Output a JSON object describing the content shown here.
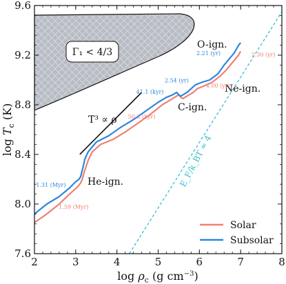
{
  "chart_data": {
    "type": "line",
    "xlabel": "log ρ_c (g cm⁻³)",
    "ylabel": "log T_c (K)",
    "xlim": [
      2,
      8
    ],
    "ylim": [
      7.6,
      9.6
    ],
    "xticks": [
      "2",
      "3",
      "4",
      "5",
      "6",
      "7",
      "8"
    ],
    "yticks": [
      "7.6",
      "8.0",
      "8.4",
      "8.8",
      "9.2",
      "9.6"
    ],
    "legend": {
      "placement": "bottom-right",
      "entries": [
        "Solar",
        "Subsolar"
      ]
    },
    "colors": {
      "solar": "#f07f72",
      "subsolar": "#2a86e0",
      "degeneracy": "#35c0d0",
      "forbidden": "#b8bcc4"
    },
    "series": [
      {
        "name": "Solar",
        "x": [
          2.0,
          2.3,
          2.6,
          2.85,
          3.05,
          3.12,
          3.16,
          3.2,
          3.25,
          3.3,
          3.4,
          3.6,
          3.9,
          4.2,
          4.5,
          4.8,
          5.1,
          5.3,
          5.4,
          5.5,
          5.55,
          5.6,
          5.75,
          5.85,
          5.95,
          6.1,
          6.3,
          6.5,
          6.65,
          6.8,
          6.9,
          6.95,
          6.98,
          7.0
        ],
        "y": [
          7.85,
          7.92,
          8.0,
          8.08,
          8.14,
          8.17,
          8.2,
          8.25,
          8.3,
          8.35,
          8.42,
          8.48,
          8.52,
          8.58,
          8.65,
          8.72,
          8.8,
          8.84,
          8.86,
          8.88,
          8.86,
          8.85,
          8.88,
          8.9,
          8.93,
          8.95,
          8.98,
          9.03,
          9.08,
          9.14,
          9.18,
          9.2,
          9.22,
          9.23
        ]
      },
      {
        "name": "Subsolar",
        "x": [
          2.0,
          2.3,
          2.6,
          2.85,
          3.0,
          3.08,
          3.12,
          3.15,
          3.18,
          3.22,
          3.3,
          3.5,
          3.8,
          4.1,
          4.4,
          4.7,
          5.0,
          5.2,
          5.35,
          5.45,
          5.5,
          5.55,
          5.7,
          5.8,
          5.9,
          6.05,
          6.25,
          6.45,
          6.6,
          6.75,
          6.85,
          6.9,
          6.95,
          7.0
        ],
        "y": [
          7.92,
          8.0,
          8.06,
          8.13,
          8.18,
          8.2,
          8.22,
          8.26,
          8.3,
          8.36,
          8.42,
          8.5,
          8.55,
          8.62,
          8.68,
          8.75,
          8.82,
          8.86,
          8.88,
          8.9,
          8.88,
          8.87,
          8.9,
          8.93,
          8.96,
          8.98,
          9.0,
          9.05,
          9.12,
          9.18,
          9.22,
          9.25,
          9.28,
          9.3
        ]
      }
    ],
    "degeneracy_line": {
      "x": [
        4.3,
        8.0
      ],
      "y": [
        7.6,
        9.55
      ],
      "label": "E_F/k_BT ≈ 4"
    },
    "slope_line": {
      "x": [
        3.1,
        4.6
      ],
      "y": [
        8.4,
        8.9
      ],
      "label": "T³ ∝ ρ"
    },
    "forbidden_region": {
      "label": "Γ₁ < 4/3"
    },
    "annotations": {
      "he_ign": "He-ign.",
      "c_ign": "C-ign.",
      "ne_ign": "Ne-ign.",
      "o_ign": "O-ign."
    },
    "times_subsolar": [
      {
        "label": "1.31 (Myr)",
        "x": 2.4,
        "y": 8.14
      },
      {
        "label": "41.1 (kyr)",
        "x": 4.8,
        "y": 8.89
      },
      {
        "label": "2.54 (yr)",
        "x": 5.45,
        "y": 8.98
      },
      {
        "label": "2.21 (yr)",
        "x": 6.22,
        "y": 9.2
      }
    ],
    "times_solar": [
      {
        "label": "1.59 (Myr)",
        "x": 2.95,
        "y": 7.96
      },
      {
        "label": "50.3 (kyr)",
        "x": 4.6,
        "y": 8.69
      },
      {
        "label": "4.00 (yr)",
        "x": 6.45,
        "y": 8.94
      },
      {
        "label": "2.30 (yr)",
        "x": 7.55,
        "y": 9.19
      }
    ]
  }
}
